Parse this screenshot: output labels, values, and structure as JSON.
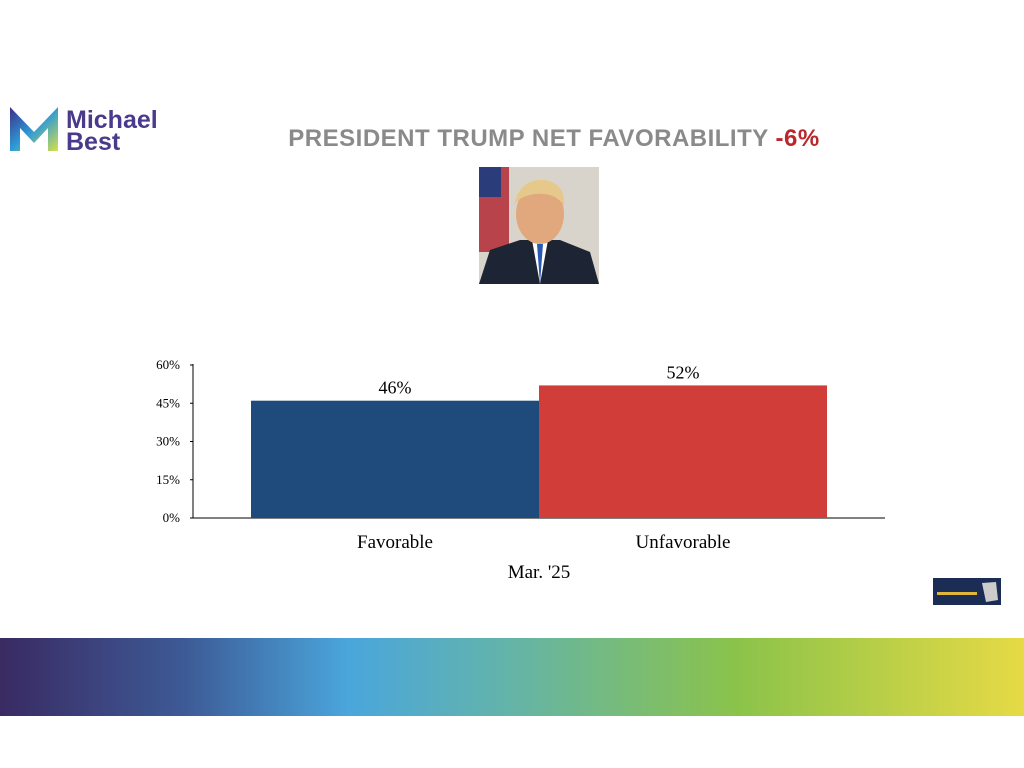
{
  "logo": {
    "line1": "Michael",
    "line2": "Best"
  },
  "chart_data": {
    "type": "bar",
    "title": "PRESIDENT TRUMP NET FAVORABILITY",
    "title_highlight": "-6%",
    "x_label": "Mar. '25",
    "categories": [
      "Favorable",
      "Unfavorable"
    ],
    "values": [
      46,
      52
    ],
    "value_labels": [
      "46%",
      "52%"
    ],
    "colors": [
      "#1f4b7c",
      "#d13d39"
    ],
    "ylim": [
      0,
      60
    ],
    "yticks": [
      {
        "value": 0,
        "label": "0%"
      },
      {
        "value": 15,
        "label": "15%"
      },
      {
        "value": 30,
        "label": "30%"
      },
      {
        "value": 45,
        "label": "45%"
      },
      {
        "value": 60,
        "label": "60%"
      }
    ],
    "grid": false
  }
}
